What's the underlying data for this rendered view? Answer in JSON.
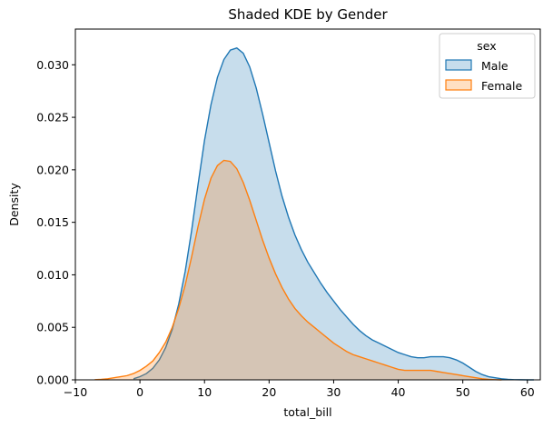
{
  "chart_data": {
    "type": "area",
    "title": "Shaded KDE by Gender",
    "xlabel": "total_bill",
    "ylabel": "Density",
    "xlim": [
      -10,
      62
    ],
    "ylim": [
      0,
      0.0334
    ],
    "xticks": [
      -10,
      0,
      10,
      20,
      30,
      40,
      50,
      60
    ],
    "xtick_labels": [
      "−10",
      "0",
      "10",
      "20",
      "30",
      "40",
      "50",
      "60"
    ],
    "yticks": [
      0.0,
      0.005,
      0.01,
      0.015,
      0.02,
      0.025,
      0.03
    ],
    "ytick_labels": [
      "0.000",
      "0.005",
      "0.010",
      "0.015",
      "0.020",
      "0.025",
      "0.030"
    ],
    "grid": false,
    "legend": {
      "title": "sex",
      "placement": "top-right",
      "entries": [
        "Male",
        "Female"
      ]
    },
    "series": [
      {
        "name": "Male",
        "line_color": "#1f77b4",
        "fill_color": "#1f77b4",
        "fill_opacity": 0.25,
        "x": [
          -1,
          0,
          1,
          2,
          3,
          4,
          5,
          6,
          7,
          8,
          9,
          10,
          11,
          12,
          13,
          14,
          15,
          16,
          17,
          18,
          19,
          20,
          21,
          22,
          23,
          24,
          25,
          26,
          27,
          28,
          29,
          30,
          31,
          32,
          33,
          34,
          35,
          36,
          37,
          38,
          39,
          40,
          41,
          42,
          43,
          44,
          45,
          46,
          47,
          48,
          49,
          50,
          51,
          52,
          53,
          54,
          55,
          56,
          57,
          58,
          59,
          60,
          61
        ],
        "y": [
          0.0001,
          0.0003,
          0.0006,
          0.0011,
          0.0019,
          0.0031,
          0.0048,
          0.0072,
          0.0103,
          0.0142,
          0.0186,
          0.0228,
          0.0262,
          0.0288,
          0.0305,
          0.0314,
          0.0316,
          0.0311,
          0.0298,
          0.0278,
          0.0253,
          0.0226,
          0.0199,
          0.0175,
          0.0155,
          0.0138,
          0.0124,
          0.0112,
          0.0102,
          0.0092,
          0.0083,
          0.0075,
          0.0067,
          0.006,
          0.0053,
          0.0047,
          0.0042,
          0.0038,
          0.0035,
          0.0032,
          0.0029,
          0.0026,
          0.0024,
          0.0022,
          0.0021,
          0.0021,
          0.0022,
          0.0022,
          0.0022,
          0.0021,
          0.0019,
          0.0016,
          0.0012,
          0.0008,
          0.0005,
          0.0003,
          0.0002,
          0.0001,
          5e-05,
          2e-05,
          1e-05,
          0.0,
          0.0
        ]
      },
      {
        "name": "Female",
        "line_color": "#ff7f0e",
        "fill_color": "#ff7f0e",
        "fill_opacity": 0.25,
        "x": [
          -7,
          -6,
          -5,
          -4,
          -3,
          -2,
          -1,
          0,
          1,
          2,
          3,
          4,
          5,
          6,
          7,
          8,
          9,
          10,
          11,
          12,
          13,
          14,
          15,
          16,
          17,
          18,
          19,
          20,
          21,
          22,
          23,
          24,
          25,
          26,
          27,
          28,
          29,
          30,
          31,
          32,
          33,
          34,
          35,
          36,
          37,
          38,
          39,
          40,
          41,
          42,
          43,
          44,
          45,
          46,
          47,
          48,
          49,
          50,
          51,
          52,
          53,
          54,
          55,
          56
        ],
        "y": [
          2e-05,
          5e-05,
          0.0001,
          0.0002,
          0.0003,
          0.0004,
          0.0006,
          0.0009,
          0.0013,
          0.0018,
          0.0026,
          0.0036,
          0.005,
          0.0068,
          0.009,
          0.0117,
          0.0146,
          0.0172,
          0.0192,
          0.0204,
          0.0209,
          0.0208,
          0.0201,
          0.0188,
          0.0171,
          0.0152,
          0.0133,
          0.0116,
          0.0101,
          0.0088,
          0.0077,
          0.0068,
          0.0061,
          0.0055,
          0.005,
          0.0045,
          0.004,
          0.0035,
          0.0031,
          0.0027,
          0.0024,
          0.0022,
          0.002,
          0.0018,
          0.0016,
          0.0014,
          0.0012,
          0.001,
          0.0009,
          0.0009,
          0.0009,
          0.0009,
          0.0009,
          0.0008,
          0.0007,
          0.0006,
          0.0005,
          0.0004,
          0.0003,
          0.0002,
          0.0001,
          5e-05,
          2e-05,
          0.0
        ]
      }
    ]
  }
}
